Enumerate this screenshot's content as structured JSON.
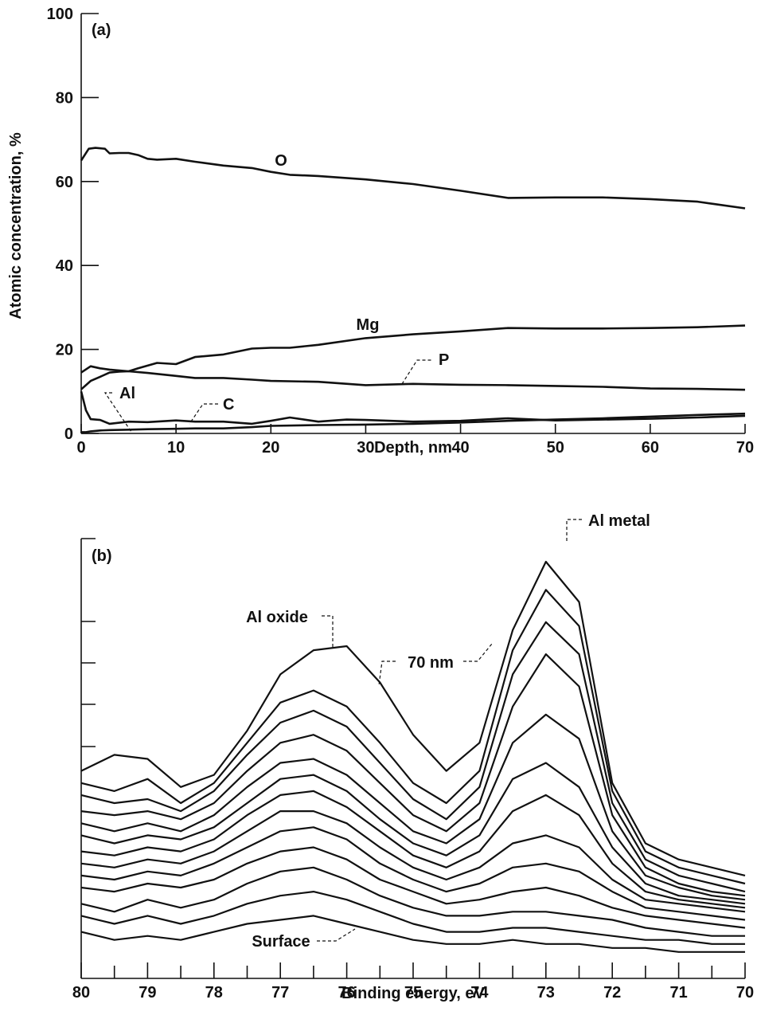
{
  "chart_data": [
    {
      "type": "line",
      "panel_label": "(a)",
      "xlabel": "Depth, nm",
      "ylabel": "Atomic concentration, %",
      "xlim": [
        0,
        70
      ],
      "ylim": [
        0,
        100
      ],
      "xticks": [
        0,
        10,
        20,
        30,
        40,
        50,
        60,
        70
      ],
      "yticks": [
        0,
        20,
        40,
        60,
        80,
        100
      ],
      "series": [
        {
          "name": "O",
          "x": [
            0,
            0.8,
            1.5,
            2.5,
            3,
            4,
            5,
            6,
            7,
            8,
            10,
            12,
            15,
            18,
            20,
            22,
            25,
            30,
            35,
            40,
            45,
            50,
            55,
            60,
            65,
            70
          ],
          "y": [
            65,
            67.8,
            68,
            67.8,
            66.7,
            66.8,
            66.8,
            66.3,
            65.4,
            65.2,
            65.4,
            64.7,
            63.8,
            63.2,
            62.3,
            61.6,
            61.3,
            60.5,
            59.4,
            57.8,
            56.1,
            56.2,
            56.2,
            55.8,
            55.2,
            53.6
          ]
        },
        {
          "name": "Mg",
          "x": [
            0,
            1,
            2,
            3,
            4,
            5,
            6,
            8,
            10,
            12,
            15,
            18,
            20,
            22,
            25,
            30,
            35,
            40,
            45,
            50,
            55,
            60,
            65,
            70
          ],
          "y": [
            10.5,
            12.5,
            13.5,
            14.5,
            14.7,
            14.8,
            15.5,
            16.8,
            16.5,
            18.2,
            18.8,
            20.2,
            20.4,
            20.4,
            21.1,
            22.7,
            23.6,
            24.3,
            25.1,
            25,
            25,
            25.1,
            25.3,
            25.7
          ]
        },
        {
          "name": "P",
          "x": [
            0,
            1,
            2,
            3,
            5,
            7,
            10,
            12,
            15,
            18,
            20,
            25,
            30,
            35,
            40,
            45,
            50,
            55,
            60,
            65,
            70
          ],
          "y": [
            14.5,
            16,
            15.5,
            15.2,
            14.8,
            14.4,
            13.7,
            13.2,
            13.2,
            12.8,
            12.5,
            12.3,
            11.5,
            11.8,
            11.6,
            11.5,
            11.3,
            11.1,
            10.7,
            10.6,
            10.4
          ]
        },
        {
          "name": "C",
          "x": [
            0,
            0.5,
            1,
            2,
            3,
            5,
            7,
            10,
            12,
            15,
            18,
            20,
            22,
            25,
            28,
            30,
            35,
            40,
            45,
            50,
            55,
            60,
            65,
            70
          ],
          "y": [
            10,
            5.5,
            3.4,
            3.2,
            2.3,
            2.8,
            2.7,
            3.1,
            2.8,
            2.8,
            2.3,
            3,
            3.8,
            2.8,
            3.3,
            3.2,
            2.8,
            3,
            3.6,
            3.1,
            3.3,
            3.5,
            3.8,
            4.2
          ]
        },
        {
          "name": "Al",
          "x": [
            0,
            0.5,
            1,
            2,
            3,
            5,
            7,
            10,
            12,
            15,
            18,
            20,
            25,
            30,
            35,
            40,
            45,
            50,
            55,
            60,
            65,
            70
          ],
          "y": [
            0.3,
            0.3,
            0.5,
            0.7,
            0.8,
            0.9,
            1,
            1.1,
            1.2,
            1.2,
            1.5,
            1.8,
            2,
            2.1,
            2.3,
            2.6,
            3,
            3.3,
            3.6,
            4,
            4.4,
            4.7
          ]
        }
      ],
      "annotations": [
        "O",
        "Mg",
        "P",
        "Al",
        "C"
      ]
    },
    {
      "type": "line",
      "panel_label": "(b)",
      "xlabel": "Binding energy, eV",
      "ylabel": "",
      "xlim": [
        80,
        70
      ],
      "ylim": [
        0,
        1
      ],
      "xticks": [
        80,
        79,
        78,
        77,
        76,
        75,
        74,
        73,
        72,
        71,
        70
      ],
      "annotations": [
        "Al oxide",
        "Al metal",
        "70 nm",
        "Surface"
      ],
      "x": [
        80,
        79.5,
        79,
        78.5,
        78,
        77.5,
        77,
        76.5,
        76,
        75.5,
        75,
        74.5,
        74,
        73.5,
        73,
        72.5,
        72,
        71.5,
        71,
        70.5,
        70
      ],
      "series": [
        {
          "y": [
            0.48,
            0.52,
            0.51,
            0.44,
            0.47,
            0.58,
            0.72,
            0.78,
            0.79,
            0.7,
            0.57,
            0.48,
            0.55,
            0.83,
            1.0,
            0.9,
            0.45,
            0.3,
            0.26,
            0.24,
            0.22
          ]
        },
        {
          "y": [
            0.45,
            0.43,
            0.46,
            0.4,
            0.45,
            0.55,
            0.65,
            0.68,
            0.64,
            0.55,
            0.45,
            0.4,
            0.48,
            0.78,
            0.93,
            0.84,
            0.43,
            0.28,
            0.24,
            0.22,
            0.2
          ]
        },
        {
          "y": [
            0.42,
            0.4,
            0.41,
            0.38,
            0.43,
            0.52,
            0.6,
            0.63,
            0.59,
            0.5,
            0.41,
            0.36,
            0.44,
            0.72,
            0.85,
            0.77,
            0.4,
            0.26,
            0.22,
            0.2,
            0.18
          ]
        },
        {
          "y": [
            0.38,
            0.37,
            0.38,
            0.36,
            0.4,
            0.48,
            0.55,
            0.57,
            0.53,
            0.45,
            0.37,
            0.33,
            0.4,
            0.64,
            0.77,
            0.69,
            0.37,
            0.24,
            0.2,
            0.18,
            0.17
          ]
        },
        {
          "y": [
            0.35,
            0.33,
            0.35,
            0.33,
            0.37,
            0.44,
            0.5,
            0.51,
            0.47,
            0.4,
            0.33,
            0.3,
            0.36,
            0.55,
            0.62,
            0.56,
            0.33,
            0.22,
            0.19,
            0.17,
            0.16
          ]
        },
        {
          "y": [
            0.32,
            0.3,
            0.32,
            0.31,
            0.34,
            0.4,
            0.46,
            0.47,
            0.43,
            0.36,
            0.3,
            0.27,
            0.32,
            0.46,
            0.5,
            0.44,
            0.29,
            0.2,
            0.17,
            0.16,
            0.15
          ]
        },
        {
          "y": [
            0.28,
            0.27,
            0.29,
            0.28,
            0.31,
            0.37,
            0.42,
            0.43,
            0.39,
            0.33,
            0.27,
            0.24,
            0.28,
            0.38,
            0.42,
            0.37,
            0.25,
            0.18,
            0.16,
            0.15,
            0.14
          ]
        },
        {
          "y": [
            0.25,
            0.24,
            0.26,
            0.25,
            0.28,
            0.33,
            0.38,
            0.38,
            0.35,
            0.29,
            0.24,
            0.21,
            0.24,
            0.3,
            0.32,
            0.29,
            0.21,
            0.16,
            0.15,
            0.14,
            0.13
          ]
        },
        {
          "y": [
            0.22,
            0.21,
            0.23,
            0.22,
            0.25,
            0.29,
            0.33,
            0.34,
            0.31,
            0.25,
            0.21,
            0.18,
            0.2,
            0.24,
            0.25,
            0.23,
            0.18,
            0.14,
            0.13,
            0.12,
            0.11
          ]
        },
        {
          "y": [
            0.19,
            0.18,
            0.2,
            0.19,
            0.21,
            0.25,
            0.28,
            0.29,
            0.26,
            0.21,
            0.18,
            0.15,
            0.16,
            0.18,
            0.19,
            0.17,
            0.14,
            0.12,
            0.11,
            0.1,
            0.09
          ]
        },
        {
          "y": [
            0.15,
            0.13,
            0.16,
            0.14,
            0.16,
            0.2,
            0.23,
            0.24,
            0.21,
            0.17,
            0.14,
            0.12,
            0.12,
            0.13,
            0.13,
            0.12,
            0.11,
            0.09,
            0.08,
            0.07,
            0.07
          ]
        },
        {
          "y": [
            0.12,
            0.1,
            0.12,
            0.1,
            0.12,
            0.15,
            0.17,
            0.18,
            0.16,
            0.13,
            0.1,
            0.08,
            0.08,
            0.09,
            0.09,
            0.08,
            0.07,
            0.06,
            0.06,
            0.05,
            0.05
          ]
        },
        {
          "y": [
            0.08,
            0.06,
            0.07,
            0.06,
            0.08,
            0.1,
            0.11,
            0.12,
            0.1,
            0.08,
            0.06,
            0.05,
            0.05,
            0.06,
            0.05,
            0.05,
            0.04,
            0.04,
            0.03,
            0.03,
            0.03
          ]
        }
      ]
    }
  ]
}
